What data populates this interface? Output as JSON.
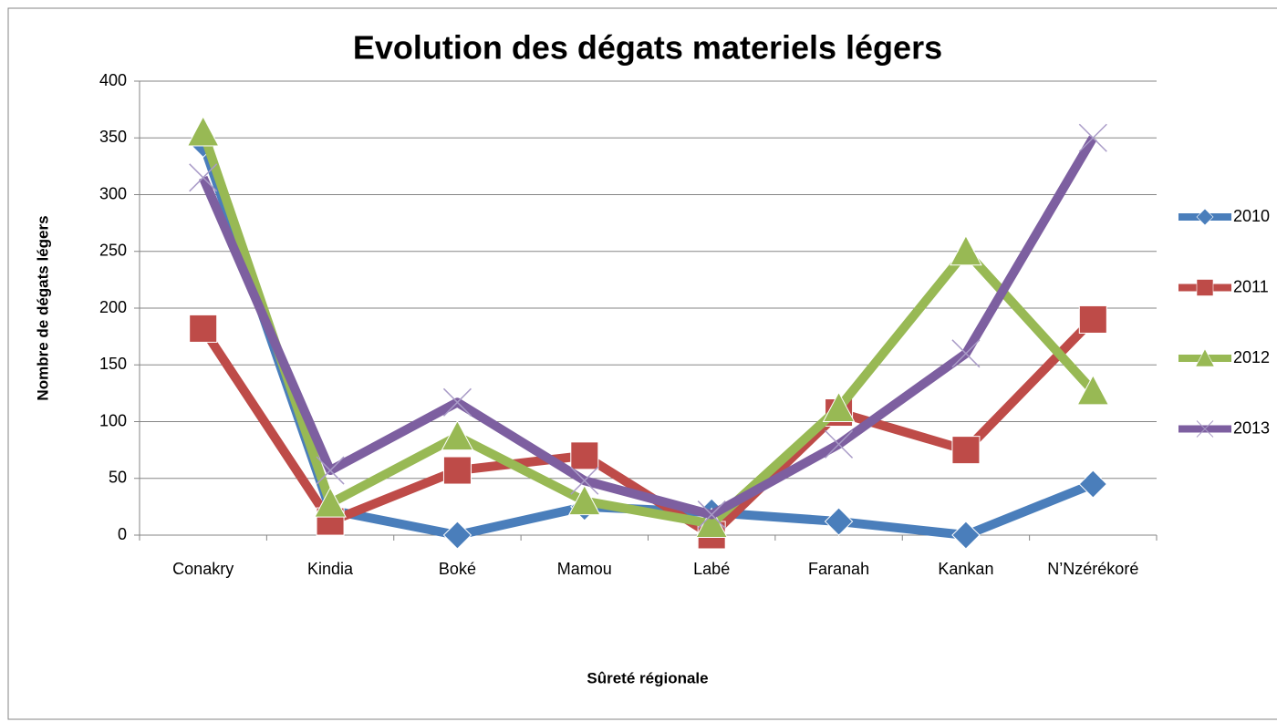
{
  "chart_data": {
    "type": "line",
    "title": "Evolution des dégats materiels légers",
    "y_label": "Nombre de dégats légers",
    "x_label": "Sûreté régionale",
    "categories": [
      "Conakry",
      "Kindia",
      "Boké",
      "Mamou",
      "Labé",
      "Faranah",
      "Kankan",
      "N’Nzérékoré"
    ],
    "series": [
      {
        "name": "2010",
        "color": "#4a7ebb",
        "marker": "diamond",
        "values": [
          345,
          22,
          0,
          25,
          20,
          12,
          0,
          45
        ]
      },
      {
        "name": "2011",
        "color": "#be4b48",
        "marker": "square",
        "values": [
          182,
          12,
          57,
          70,
          0,
          108,
          75,
          190
        ]
      },
      {
        "name": "2012",
        "color": "#98b954",
        "marker": "triangle",
        "values": [
          355,
          28,
          87,
          30,
          10,
          112,
          250,
          127
        ]
      },
      {
        "name": "2013",
        "color": "#7d5fa0",
        "marker": "x",
        "values": [
          315,
          57,
          117,
          48,
          18,
          80,
          160,
          350
        ]
      }
    ],
    "ylim": [
      0,
      400
    ],
    "yticks": [
      0,
      50,
      100,
      150,
      200,
      250,
      300,
      350,
      400
    ],
    "grid": true,
    "legend": "right"
  }
}
